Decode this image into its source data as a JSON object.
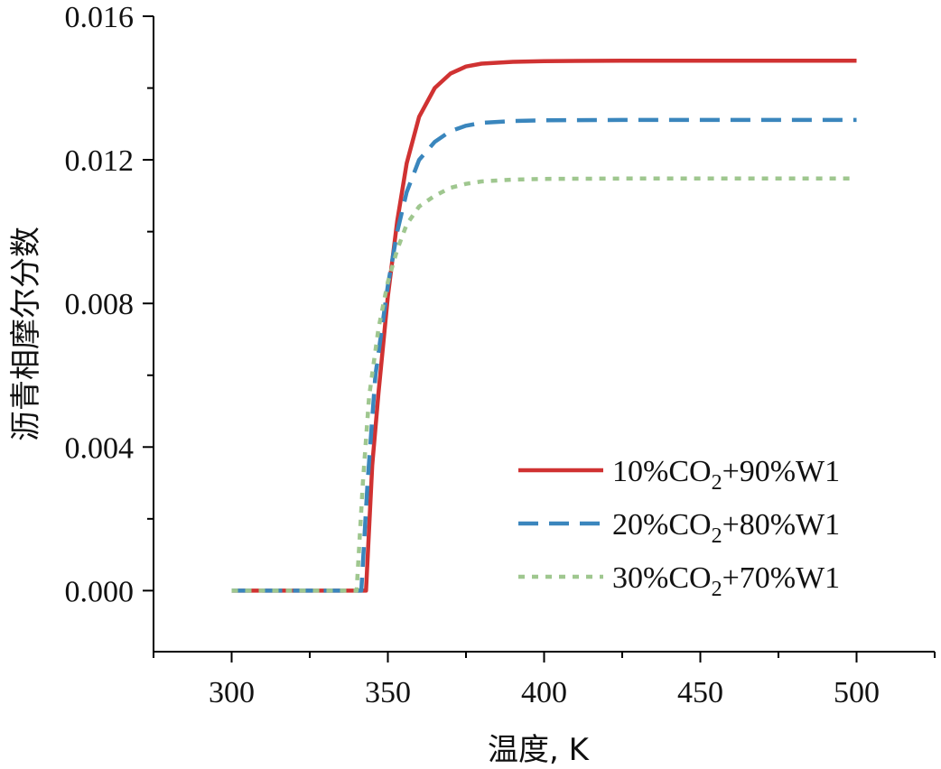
{
  "chart_data": {
    "type": "line",
    "xlabel": "温度, K",
    "ylabel": "沥青相摩尔分数",
    "xlim": [
      275,
      525
    ],
    "ylim": [
      -0.0017,
      0.016
    ],
    "xticks": [
      300,
      350,
      400,
      450,
      500
    ],
    "xtick_labels": [
      "300",
      "350",
      "400",
      "450",
      "500"
    ],
    "yticks": [
      0.0,
      0.004,
      0.008,
      0.012,
      0.016
    ],
    "ytick_labels": [
      "0.000",
      "0.004",
      "0.008",
      "0.012",
      "0.016"
    ],
    "legend_position": "bottom-right",
    "series": [
      {
        "name": "10%CO2+90%W1",
        "label_main": "10%CO",
        "label_sub": "2",
        "label_rest": "+90%W1",
        "color": "#d03232",
        "style": "solid",
        "x": [
          300,
          343,
          345,
          347,
          350,
          353,
          356,
          360,
          365,
          370,
          375,
          380,
          390,
          400,
          425,
          450,
          500
        ],
        "y": [
          0.0,
          0.0,
          0.0035,
          0.0055,
          0.0082,
          0.0103,
          0.0119,
          0.0132,
          0.014,
          0.0144,
          0.0146,
          0.01468,
          0.01473,
          0.01475,
          0.01476,
          0.01476,
          0.01476
        ]
      },
      {
        "name": "20%CO2+80%W1",
        "label_main": "20%CO",
        "label_sub": "2",
        "label_rest": "+80%W1",
        "color": "#3a86bd",
        "style": "dashed",
        "x": [
          300,
          341.5,
          343.5,
          346,
          350,
          353,
          356,
          360,
          365,
          370,
          375,
          380,
          390,
          400,
          425,
          450,
          500
        ],
        "y": [
          0.0,
          0.0,
          0.003,
          0.006,
          0.0085,
          0.01,
          0.0111,
          0.012,
          0.0125,
          0.0128,
          0.01295,
          0.01303,
          0.01308,
          0.0131,
          0.01311,
          0.01311,
          0.01311
        ]
      },
      {
        "name": "30%CO2+70%W1",
        "label_main": "30%CO",
        "label_sub": "2",
        "label_rest": "+70%W1",
        "color": "#9fc78f",
        "style": "dotted",
        "x": [
          300,
          340,
          342,
          344,
          347,
          350,
          353,
          356,
          360,
          365,
          370,
          375,
          380,
          390,
          400,
          425,
          450,
          500
        ],
        "y": [
          0.0,
          0.0,
          0.003,
          0.0054,
          0.0073,
          0.0086,
          0.0095,
          0.0102,
          0.0107,
          0.011,
          0.01122,
          0.01133,
          0.0114,
          0.01145,
          0.01147,
          0.01148,
          0.01148,
          0.01148
        ]
      }
    ]
  }
}
